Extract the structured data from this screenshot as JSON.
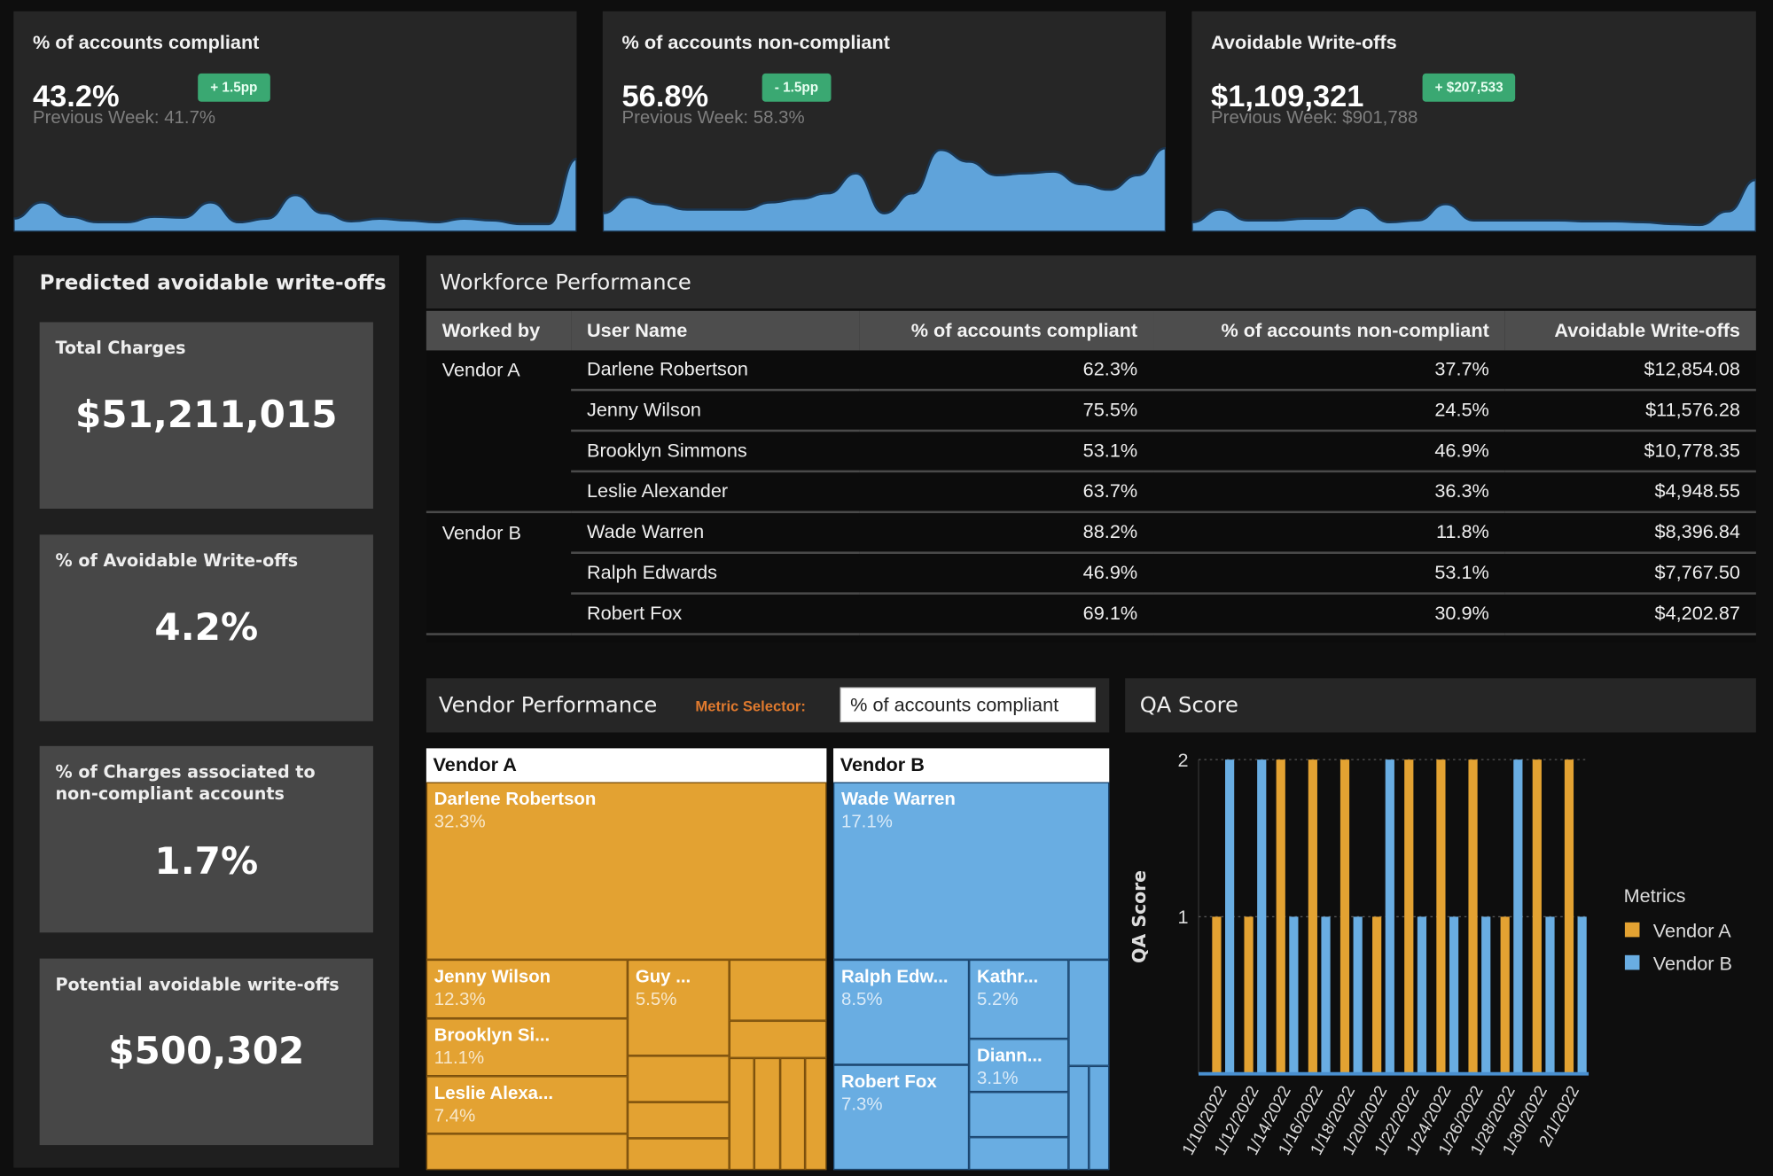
{
  "kpis": [
    {
      "title": "% of accounts compliant",
      "value": "43.2%",
      "badge": "+ 1.5pp",
      "previous": "Previous Week: 41.7%",
      "trend": [
        12,
        30,
        14,
        8,
        8,
        14,
        13,
        30,
        8,
        12,
        38,
        18,
        9,
        12,
        10,
        8,
        12,
        10,
        6,
        6,
        78
      ]
    },
    {
      "title": "% of accounts non-compliant",
      "value": "56.8%",
      "badge": "- 1.5pp",
      "previous": "Previous Week: 58.3%",
      "trend": [
        18,
        36,
        28,
        22,
        22,
        22,
        30,
        34,
        40,
        62,
        18,
        40,
        88,
        75,
        60,
        62,
        64,
        50,
        44,
        60,
        90
      ]
    },
    {
      "title": "Avoidable Write-offs",
      "value": "$1,109,321",
      "badge": "+ $207,533",
      "previous": "Previous Week: $901,788",
      "trend": [
        8,
        22,
        10,
        10,
        12,
        12,
        24,
        8,
        10,
        28,
        10,
        10,
        10,
        10,
        9,
        9,
        8,
        6,
        5,
        20,
        55
      ]
    }
  ],
  "colors": {
    "sparkline": "#5fa3da",
    "badge": "#3aa872",
    "vendor_a": "#e3a232",
    "vendor_b": "#69ade2",
    "selector_label": "#e07a2e"
  },
  "predicted": {
    "title": "Predicted avoidable write-offs",
    "stats": [
      {
        "label": "Total Charges",
        "value": "$51,211,015"
      },
      {
        "label": "% of Avoidable Write-offs",
        "value": "4.2%"
      },
      {
        "label": "% of Charges associated to non-compliant accounts",
        "value": "1.7%"
      },
      {
        "label": "Potential avoidable write-offs",
        "value": "$500,302"
      }
    ]
  },
  "workforce": {
    "title": "Workforce Performance",
    "columns": [
      "Worked by",
      "User Name",
      "% of accounts compliant",
      "% of accounts non-compliant",
      "Avoidable Write-offs"
    ],
    "groups": [
      {
        "vendor": "Vendor A",
        "rows": [
          [
            "Darlene Robertson",
            "62.3%",
            "37.7%",
            "$12,854.08"
          ],
          [
            "Jenny Wilson",
            "75.5%",
            "24.5%",
            "$11,576.28"
          ],
          [
            "Brooklyn Simmons",
            "53.1%",
            "46.9%",
            "$10,778.35"
          ],
          [
            "Leslie Alexander",
            "63.7%",
            "36.3%",
            "$4,948.55"
          ]
        ]
      },
      {
        "vendor": "Vendor B",
        "rows": [
          [
            "Wade Warren",
            "88.2%",
            "11.8%",
            "$8,396.84"
          ],
          [
            "Ralph Edwards",
            "46.9%",
            "53.1%",
            "$7,767.50"
          ],
          [
            "Robert Fox",
            "69.1%",
            "30.9%",
            "$4,202.87"
          ]
        ]
      }
    ]
  },
  "vendor_performance": {
    "title": "Vendor Performance",
    "metric_selector_label": "Metric Selector:",
    "metric_selected": "% of accounts compliant",
    "vendors": [
      {
        "name": "Vendor A",
        "leaves": [
          {
            "name": "Darlene Robertson",
            "value": "32.3%"
          },
          {
            "name": "Jenny Wilson",
            "value": "12.3%"
          },
          {
            "name": "Brooklyn Si...",
            "value": "11.1%"
          },
          {
            "name": "Leslie Alexa...",
            "value": "7.4%"
          },
          {
            "name": "Guy ...",
            "value": "5.5%"
          }
        ]
      },
      {
        "name": "Vendor B",
        "leaves": [
          {
            "name": "Wade Warren",
            "value": "17.1%"
          },
          {
            "name": "Ralph Edw...",
            "value": "8.5%"
          },
          {
            "name": "Robert Fox",
            "value": "7.3%"
          },
          {
            "name": "Kathr...",
            "value": "5.2%"
          },
          {
            "name": "Diann...",
            "value": "3.1%"
          }
        ]
      }
    ]
  },
  "qa": {
    "title": "QA Score",
    "chart_data": {
      "type": "bar",
      "ylabel": "QA Score",
      "ylim": [
        0,
        2
      ],
      "yticks": [
        "1",
        "2"
      ],
      "legend_title": "Metrics",
      "legend_position": "right",
      "categories": [
        "1/10/2022",
        "1/12/2022",
        "1/14/2022",
        "1/16/2022",
        "1/18/2022",
        "1/20/2022",
        "1/22/2022",
        "1/24/2022",
        "1/26/2022",
        "1/28/2022",
        "1/30/2022",
        "2/1/2022"
      ],
      "series": [
        {
          "name": "Vendor A",
          "color": "#e3a232",
          "values": [
            1,
            1,
            2,
            2,
            2,
            1,
            2,
            2,
            2,
            1,
            2,
            2
          ]
        },
        {
          "name": "Vendor B",
          "color": "#69ade2",
          "values": [
            2,
            2,
            1,
            1,
            1,
            2,
            1,
            1,
            1,
            2,
            1,
            1
          ]
        }
      ]
    }
  }
}
